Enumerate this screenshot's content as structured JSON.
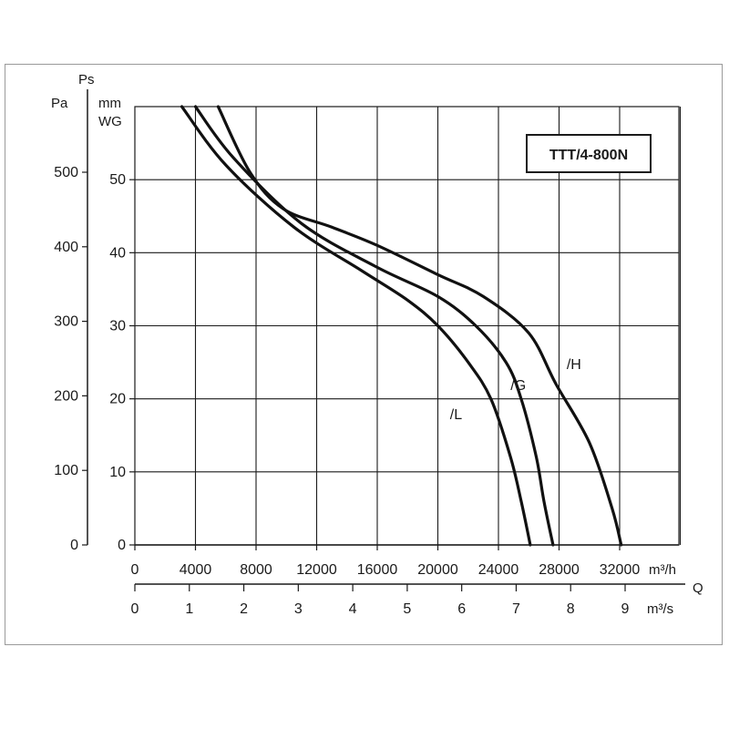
{
  "chart_data": {
    "type": "line",
    "title": "TTT/4-800N",
    "y_axis_labels": {
      "symbol": "Ps",
      "pa_unit": "Pa",
      "wg_unit_line1": "mm",
      "wg_unit_line2": "WG"
    },
    "x_axis_labels": {
      "symbol": "Q",
      "m3h_unit": "m³/h",
      "m3s_unit": "m³/s"
    },
    "xlim": [
      0,
      36000
    ],
    "ylim_mmwg": [
      0,
      60
    ],
    "x_ticks_m3h": [
      {
        "v": 0,
        "label": "0"
      },
      {
        "v": 4000,
        "label": "4000"
      },
      {
        "v": 8000,
        "label": "8000"
      },
      {
        "v": 12000,
        "label": "12000"
      },
      {
        "v": 16000,
        "label": "16000"
      },
      {
        "v": 20000,
        "label": "20000"
      },
      {
        "v": 24000,
        "label": "24000"
      },
      {
        "v": 28000,
        "label": "28000"
      },
      {
        "v": 32000,
        "label": "32000"
      }
    ],
    "x_ticks_m3s": [
      {
        "v": 0,
        "label": "0"
      },
      {
        "v": 1,
        "label": "1"
      },
      {
        "v": 2,
        "label": "2"
      },
      {
        "v": 3,
        "label": "3"
      },
      {
        "v": 4,
        "label": "4"
      },
      {
        "v": 5,
        "label": "5"
      },
      {
        "v": 6,
        "label": "6"
      },
      {
        "v": 7,
        "label": "7"
      },
      {
        "v": 8,
        "label": "8"
      },
      {
        "v": 9,
        "label": "9"
      }
    ],
    "y_ticks_mmwg": [
      {
        "v": 0,
        "label": "0"
      },
      {
        "v": 10,
        "label": "10"
      },
      {
        "v": 20,
        "label": "20"
      },
      {
        "v": 30,
        "label": "30"
      },
      {
        "v": 40,
        "label": "40"
      },
      {
        "v": 50,
        "label": "50"
      }
    ],
    "y_ticks_pa": [
      {
        "v": 0,
        "label": "0"
      },
      {
        "v": 100,
        "label": "100"
      },
      {
        "v": 200,
        "label": "200"
      },
      {
        "v": 300,
        "label": "300"
      },
      {
        "v": 400,
        "label": "400"
      },
      {
        "v": 500,
        "label": "500"
      }
    ],
    "grid": true,
    "series": [
      {
        "name": "/L",
        "points": [
          [
            3100,
            60
          ],
          [
            6000,
            52
          ],
          [
            10500,
            43.5
          ],
          [
            15000,
            37.5
          ],
          [
            18000,
            33.5
          ],
          [
            20000,
            30
          ],
          [
            22000,
            25
          ],
          [
            23500,
            20
          ],
          [
            24800,
            12
          ],
          [
            25500,
            6
          ],
          [
            26100,
            0
          ]
        ]
      },
      {
        "name": "/G",
        "points": [
          [
            4000,
            60
          ],
          [
            6500,
            53
          ],
          [
            11000,
            44
          ],
          [
            16000,
            38
          ],
          [
            20000,
            34
          ],
          [
            22500,
            30
          ],
          [
            24500,
            25
          ],
          [
            25500,
            20
          ],
          [
            26500,
            12
          ],
          [
            27000,
            6
          ],
          [
            27600,
            0
          ]
        ]
      },
      {
        "name": "/H",
        "points": [
          [
            5500,
            60
          ],
          [
            7600,
            51
          ],
          [
            9800,
            46
          ],
          [
            13000,
            43.5
          ],
          [
            16000,
            41
          ],
          [
            20000,
            37
          ],
          [
            23000,
            34
          ],
          [
            26000,
            29
          ],
          [
            27800,
            22
          ],
          [
            30000,
            14
          ],
          [
            31500,
            5
          ],
          [
            32100,
            0
          ]
        ]
      }
    ],
    "series_label_pos": [
      [
        20800,
        17.2
      ],
      [
        24800,
        21.2
      ],
      [
        28500,
        24.1
      ]
    ]
  }
}
